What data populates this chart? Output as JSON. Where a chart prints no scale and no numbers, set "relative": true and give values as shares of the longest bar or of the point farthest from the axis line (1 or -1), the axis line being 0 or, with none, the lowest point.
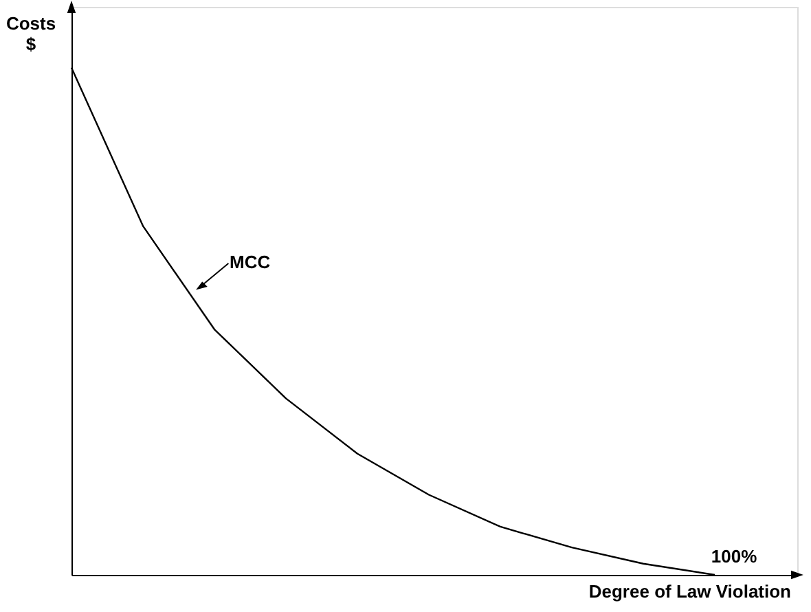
{
  "chart_data": {
    "type": "line",
    "relative": true,
    "xlabel": "Degree of Law Violation",
    "ylabel": "Costs\n$",
    "categories": [
      null,
      null,
      null,
      null,
      null,
      null,
      null,
      null,
      null,
      null
    ],
    "series": [
      {
        "color": "#000000",
        "values": [
          1.0,
          0.688,
          0.484,
          0.348,
          0.239,
          0.158,
          0.095,
          0.054,
          0.022,
          0.0
        ]
      }
    ],
    "annotations": [
      "MCC",
      "100%"
    ],
    "grid": false,
    "marker": "none",
    "line_style": "solid"
  }
}
